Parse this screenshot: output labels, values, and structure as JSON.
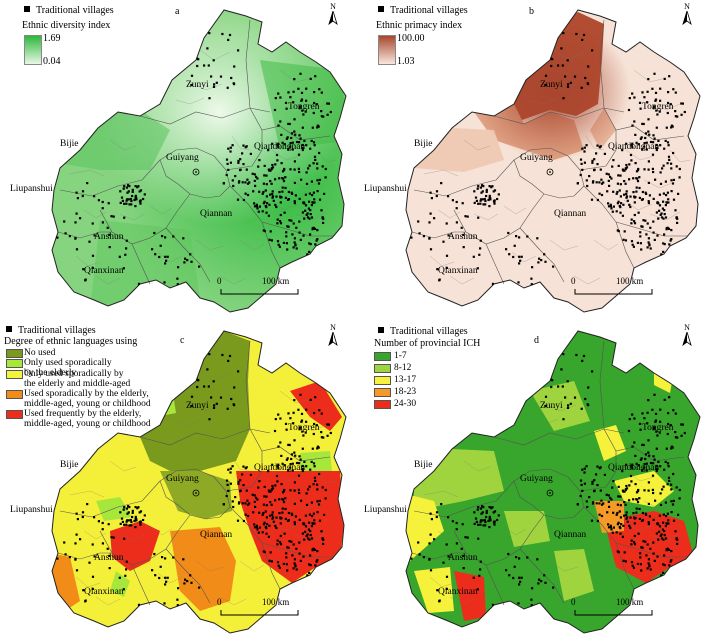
{
  "legend_dot_label": "Traditional villages",
  "panels": {
    "a": {
      "letter": "a",
      "legend_title": "Ethnic diversity index",
      "max": "1.69",
      "min": "0.04",
      "colors": {
        "low": "#e9f7e5",
        "high": "#28b83a"
      }
    },
    "b": {
      "letter": "b",
      "legend_title": "Ethnic primacy index",
      "max": "100.00",
      "min": "1.03",
      "colors": {
        "low": "#f8e6dc",
        "high": "#a9462e"
      }
    },
    "c": {
      "letter": "c",
      "legend_title": "Degree of ethnic languages using",
      "classes": [
        {
          "label": "No used",
          "color": "#7a9a1e"
        },
        {
          "label": "Only used sporadically\nby the elderly",
          "color": "#a7e63a"
        },
        {
          "label": "Only used sporadically by\nthe elderly and middle-aged",
          "color": "#f4f43a"
        },
        {
          "label": "Used sporadically by the elderly,\nmiddle-aged, young or childhood",
          "color": "#f28c18"
        },
        {
          "label": "Used frequently by the elderly,\nmiddle-aged, young or childhood",
          "color": "#ec2d1c"
        }
      ]
    },
    "d": {
      "letter": "d",
      "legend_title": "Number of provincial ICH",
      "classes": [
        {
          "label": "1-7",
          "color": "#38a52c"
        },
        {
          "label": "8-12",
          "color": "#9fd43e"
        },
        {
          "label": "13-17",
          "color": "#f6f23c"
        },
        {
          "label": "18-23",
          "color": "#f59a26"
        },
        {
          "label": "24-30",
          "color": "#ec2d1c"
        }
      ]
    }
  },
  "cities": {
    "zunyi": "Zunyi",
    "tongren": "Tongren",
    "bijie": "Bijie",
    "guiyang": "Guiyang",
    "qiandongnan": "Qiandongnan",
    "liupanshui": "Liupanshui",
    "qiannan": "Qiannan",
    "anshun": "Anshun",
    "qianxinan": "Qianxinan"
  },
  "scale": {
    "zero": "0",
    "distance": "100 km"
  },
  "north": "N"
}
